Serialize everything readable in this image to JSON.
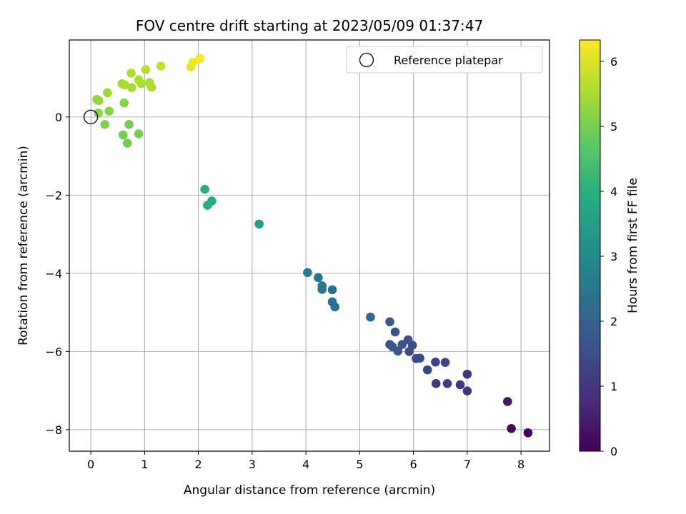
{
  "chart_data": {
    "type": "scatter",
    "title": "FOV centre drift starting at 2023/05/09 01:37:47",
    "xlabel": "Angular distance from reference (arcmin)",
    "ylabel": "Rotation from reference (arcmin)",
    "xlim": [
      -0.4,
      8.53
    ],
    "ylim": [
      -8.55,
      1.97
    ],
    "xticks": [
      0,
      1,
      2,
      3,
      4,
      5,
      6,
      7,
      8
    ],
    "yticks": [
      -8,
      -6,
      -4,
      -2,
      0
    ],
    "grid": true,
    "legend": {
      "placement": "top-right",
      "entries": [
        "Reference platepar"
      ]
    },
    "reference": {
      "x": 0,
      "y": 0,
      "marker": "open-circle"
    },
    "colorbar": {
      "label": "Hours from first FF file",
      "min": 0,
      "max": 6.33,
      "ticks": [
        0,
        1,
        2,
        3,
        4,
        5,
        6
      ],
      "colormap": "viridis"
    },
    "points": [
      {
        "x": 0.11,
        "y": 0.45,
        "c": 5.3
      },
      {
        "x": 0.15,
        "y": 0.42,
        "c": 5.3
      },
      {
        "x": 0.31,
        "y": 0.62,
        "c": 5.4
      },
      {
        "x": 0.14,
        "y": 0.1,
        "c": 5.2
      },
      {
        "x": 0.34,
        "y": 0.15,
        "c": 5.2
      },
      {
        "x": 0.26,
        "y": -0.19,
        "c": 5.1
      },
      {
        "x": 0.6,
        "y": -0.46,
        "c": 5.0
      },
      {
        "x": 0.68,
        "y": -0.67,
        "c": 5.0
      },
      {
        "x": 0.71,
        "y": -0.19,
        "c": 5.0
      },
      {
        "x": 0.89,
        "y": -0.43,
        "c": 5.0
      },
      {
        "x": 0.62,
        "y": 0.36,
        "c": 5.2
      },
      {
        "x": 0.58,
        "y": 0.85,
        "c": 5.5
      },
      {
        "x": 0.63,
        "y": 0.82,
        "c": 5.5
      },
      {
        "x": 0.76,
        "y": 0.75,
        "c": 5.5
      },
      {
        "x": 0.75,
        "y": 1.12,
        "c": 5.6
      },
      {
        "x": 0.89,
        "y": 0.95,
        "c": 5.6
      },
      {
        "x": 0.94,
        "y": 0.85,
        "c": 5.6
      },
      {
        "x": 1.02,
        "y": 1.21,
        "c": 5.7
      },
      {
        "x": 1.09,
        "y": 0.88,
        "c": 5.6
      },
      {
        "x": 1.13,
        "y": 0.76,
        "c": 5.6
      },
      {
        "x": 1.3,
        "y": 1.3,
        "c": 5.8
      },
      {
        "x": 1.86,
        "y": 1.28,
        "c": 6.1
      },
      {
        "x": 1.9,
        "y": 1.4,
        "c": 6.2
      },
      {
        "x": 2.03,
        "y": 1.5,
        "c": 6.3
      },
      {
        "x": 2.12,
        "y": -1.85,
        "c": 4.0
      },
      {
        "x": 2.17,
        "y": -2.26,
        "c": 3.9
      },
      {
        "x": 2.25,
        "y": -2.15,
        "c": 3.9
      },
      {
        "x": 3.13,
        "y": -2.74,
        "c": 3.5
      },
      {
        "x": 4.03,
        "y": -3.98,
        "c": 2.6
      },
      {
        "x": 4.23,
        "y": -4.11,
        "c": 2.5
      },
      {
        "x": 4.3,
        "y": -4.32,
        "c": 2.5
      },
      {
        "x": 4.3,
        "y": -4.41,
        "c": 2.5
      },
      {
        "x": 4.49,
        "y": -4.42,
        "c": 2.4
      },
      {
        "x": 4.49,
        "y": -4.73,
        "c": 2.4
      },
      {
        "x": 4.54,
        "y": -4.86,
        "c": 2.4
      },
      {
        "x": 5.2,
        "y": -5.12,
        "c": 2.1
      },
      {
        "x": 5.56,
        "y": -5.24,
        "c": 1.8
      },
      {
        "x": 5.66,
        "y": -5.5,
        "c": 1.7
      },
      {
        "x": 5.56,
        "y": -5.82,
        "c": 1.6
      },
      {
        "x": 5.61,
        "y": -5.88,
        "c": 1.6
      },
      {
        "x": 5.71,
        "y": -5.99,
        "c": 1.6
      },
      {
        "x": 5.79,
        "y": -5.82,
        "c": 1.6
      },
      {
        "x": 5.9,
        "y": -5.7,
        "c": 1.6
      },
      {
        "x": 5.92,
        "y": -6.0,
        "c": 1.5
      },
      {
        "x": 5.98,
        "y": -5.84,
        "c": 1.5
      },
      {
        "x": 6.05,
        "y": -6.18,
        "c": 1.5
      },
      {
        "x": 6.12,
        "y": -6.17,
        "c": 1.5
      },
      {
        "x": 6.26,
        "y": -6.47,
        "c": 1.3
      },
      {
        "x": 6.41,
        "y": -6.27,
        "c": 1.3
      },
      {
        "x": 6.42,
        "y": -6.82,
        "c": 1.1
      },
      {
        "x": 6.59,
        "y": -6.28,
        "c": 1.3
      },
      {
        "x": 6.63,
        "y": -6.82,
        "c": 1.1
      },
      {
        "x": 6.87,
        "y": -6.85,
        "c": 1.0
      },
      {
        "x": 7.0,
        "y": -6.58,
        "c": 1.0
      },
      {
        "x": 7.0,
        "y": -7.01,
        "c": 0.9
      },
      {
        "x": 7.75,
        "y": -7.28,
        "c": 0.4
      },
      {
        "x": 7.82,
        "y": -7.97,
        "c": 0.15
      },
      {
        "x": 8.13,
        "y": -8.08,
        "c": 0.05
      }
    ]
  }
}
